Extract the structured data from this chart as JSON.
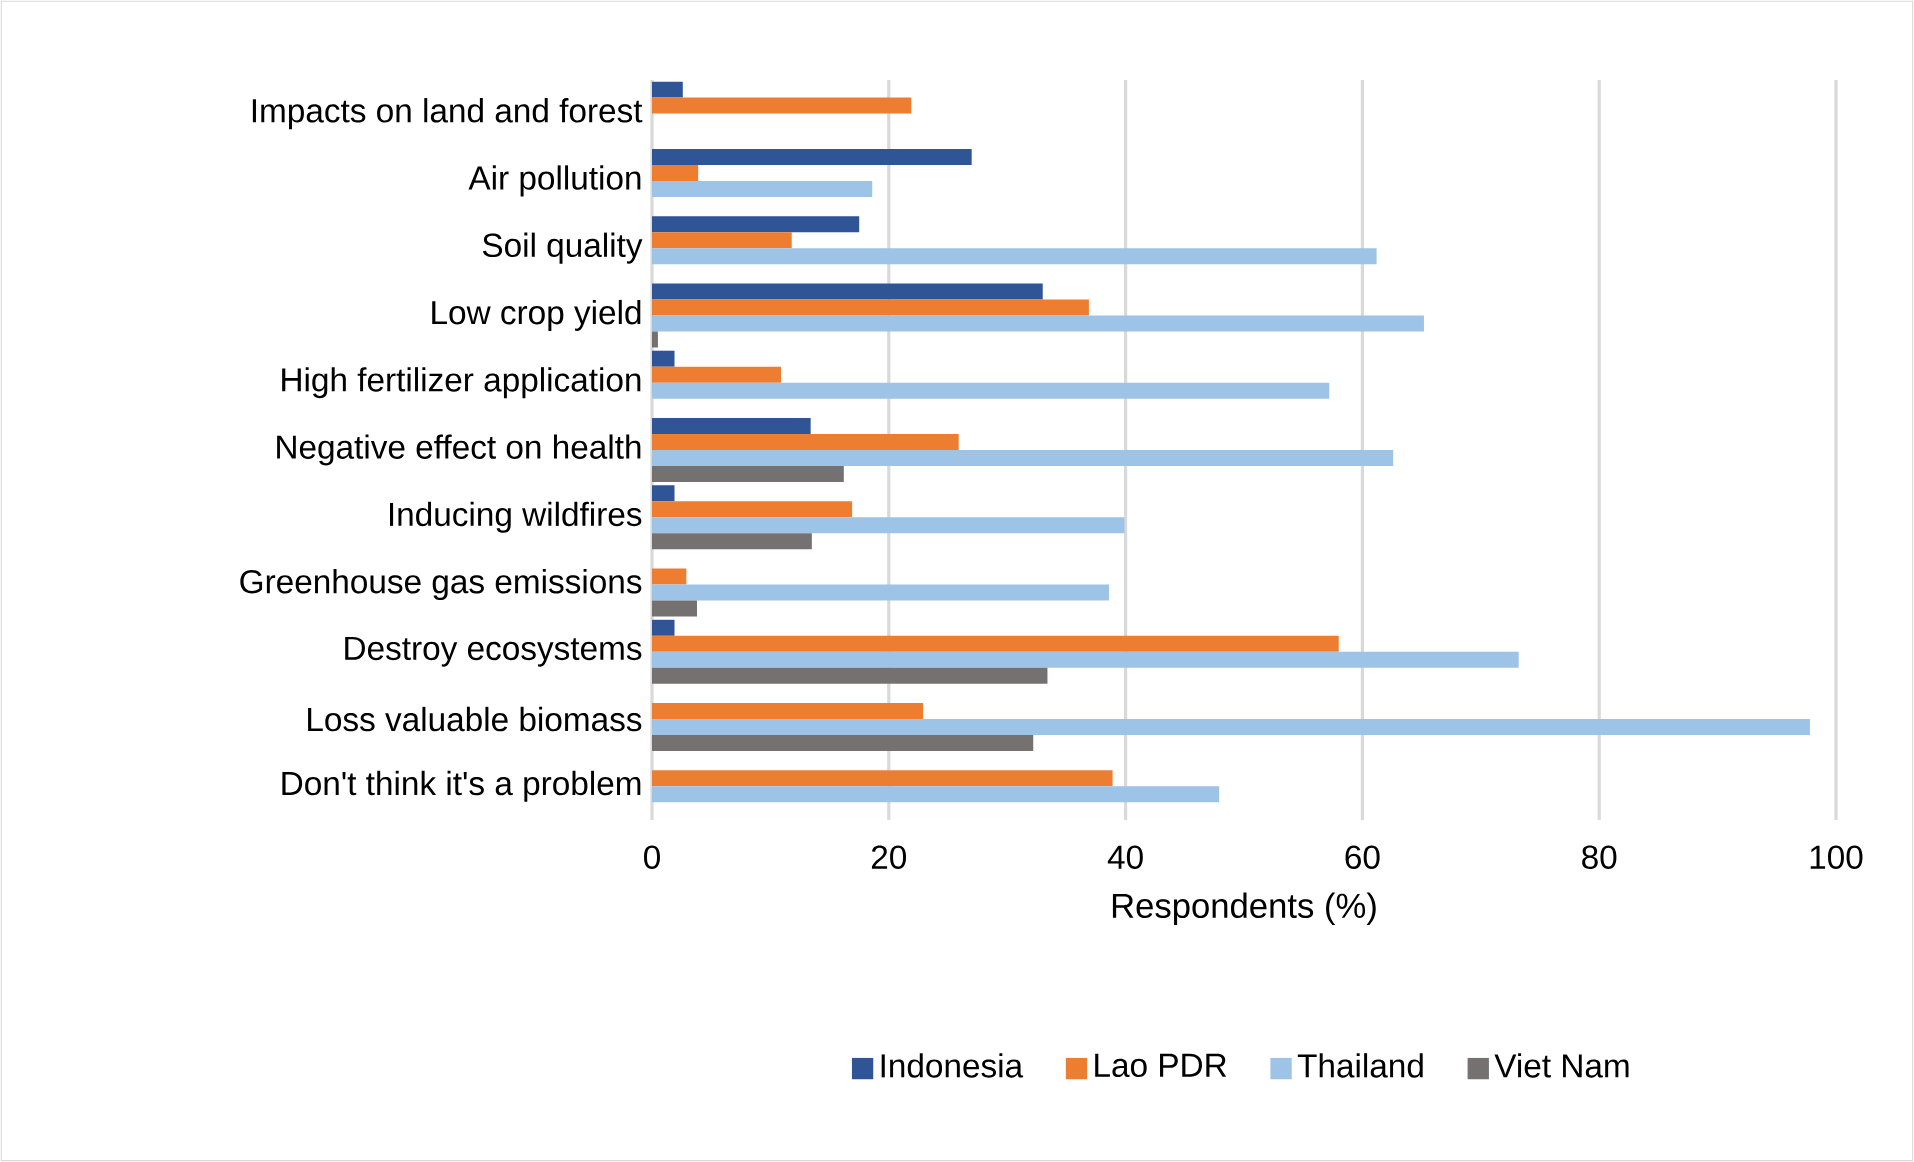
{
  "chart_data": {
    "type": "bar",
    "orientation": "horizontal",
    "xlabel": "Respondents (%)",
    "categories": [
      "Impacts on land and forest",
      "Air pollution",
      "Soil quality",
      "Low crop yield",
      "High fertilizer application",
      "Negative effect on health",
      "Inducing wildfires",
      "Greenhouse gas emissions",
      "Destroy ecosystems",
      "Loss valuable biomass",
      "Don't think it's a problem"
    ],
    "series": [
      {
        "name": "Indonesia",
        "color": "#2f5597",
        "values": [
          2.6,
          27,
          17.5,
          33,
          1.9,
          13.4,
          1.9,
          null,
          1.9,
          null,
          null
        ]
      },
      {
        "name": "Lao PDR",
        "color": "#ed7d31",
        "values": [
          21.9,
          3.9,
          11.8,
          36.9,
          10.9,
          25.9,
          16.9,
          2.9,
          58,
          22.9,
          38.9
        ]
      },
      {
        "name": "Thailand",
        "color": "#9dc3e6",
        "values": [
          null,
          18.6,
          61.2,
          65.2,
          57.2,
          62.6,
          39.9,
          38.6,
          73.2,
          97.8,
          47.9
        ]
      },
      {
        "name": "Viet Nam",
        "color": "#767171",
        "values": [
          null,
          null,
          null,
          0.5,
          null,
          16.2,
          13.5,
          3.8,
          33.4,
          32.2,
          null
        ]
      }
    ],
    "xlim": [
      0,
      100
    ],
    "xticks": [
      0,
      20,
      40,
      60,
      80,
      100
    ],
    "grid": "x",
    "legend": "bottom"
  }
}
